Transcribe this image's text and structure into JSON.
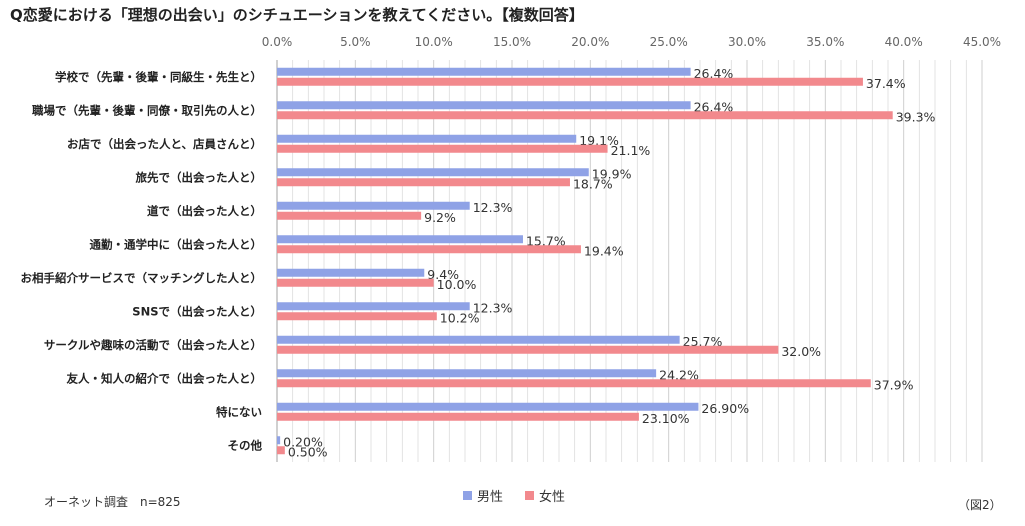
{
  "title": "Q恋愛における「理想の出会い」のシチュエーションを教えてください。【複数回答】",
  "footnote": "オーネット調査　n=825",
  "figure_label": "（図2）",
  "colors": {
    "male": "#8fa2e6",
    "female": "#f2898d",
    "grid": "#dcdcdc",
    "axis": "#b0b0b0"
  },
  "chart_data": {
    "type": "bar",
    "orientation": "horizontal",
    "title": "Q恋愛における「理想の出会い」のシチュエーションを教えてください。【複数回答】",
    "xlim": [
      0,
      45
    ],
    "x_ticks": [
      "0.0%",
      "5.0%",
      "10.0%",
      "15.0%",
      "20.0%",
      "25.0%",
      "30.0%",
      "35.0%",
      "40.0%",
      "45.0%"
    ],
    "legend_position": "bottom",
    "categories": [
      "学校で（先輩・後輩・同級生・先生と）",
      "職場で（先輩・後輩・同僚・取引先の人と）",
      "お店で（出会った人と、店員さんと）",
      "旅先で（出会った人と）",
      "道で（出会った人と）",
      "通勤・通学中に（出会った人と）",
      "お相手紹介サービスで（マッチングした人と）",
      "SNSで（出会った人と）",
      "サークルや趣味の活動で（出会った人と）",
      "友人・知人の紹介で（出会った人と）",
      "特にない",
      "その他"
    ],
    "series": [
      {
        "name": "男性",
        "values": [
          26.4,
          26.4,
          19.1,
          19.9,
          12.3,
          15.7,
          9.4,
          12.3,
          25.7,
          24.2,
          26.9,
          0.2
        ],
        "labels": [
          "26.4%",
          "26.4%",
          "19.1%",
          "19.9%",
          "12.3%",
          "15.7%",
          "9.4%",
          "12.3%",
          "25.7%",
          "24.2%",
          "26.90%",
          "0.20%"
        ]
      },
      {
        "name": "女性",
        "values": [
          37.4,
          39.3,
          21.1,
          18.7,
          9.2,
          19.4,
          10.0,
          10.2,
          32.0,
          37.9,
          23.1,
          0.5
        ],
        "labels": [
          "37.4%",
          "39.3%",
          "21.1%",
          "18.7%",
          "9.2%",
          "19.4%",
          "10.0%",
          "10.2%",
          "32.0%",
          "37.9%",
          "23.10%",
          "0.50%"
        ]
      }
    ]
  }
}
